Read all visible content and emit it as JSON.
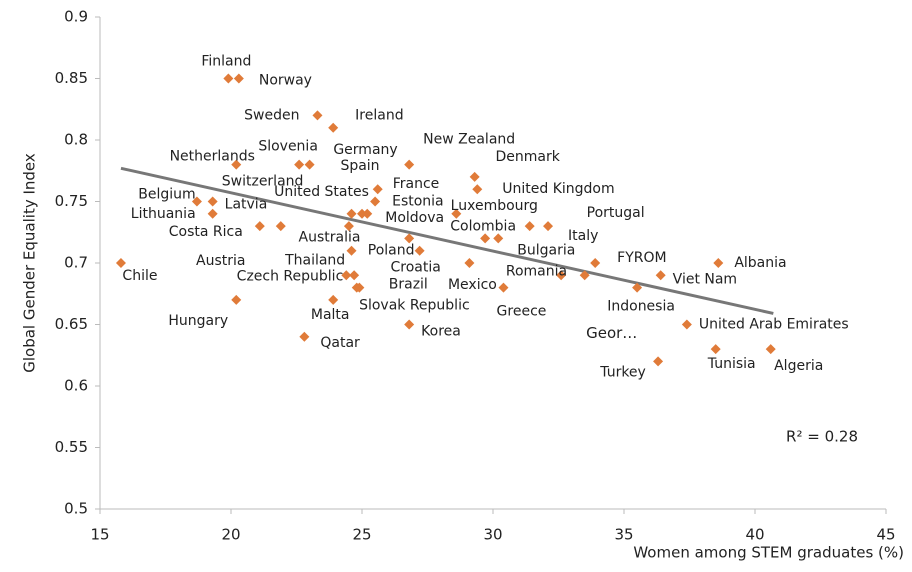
{
  "chart_data": {
    "type": "scatter",
    "xlabel": "Women among STEM graduates (%)",
    "ylabel": "Global Gender Equality Index",
    "annotation": "R² = 0.28",
    "color": "#e07b39",
    "trend_color": "#777777",
    "xlim": [
      15,
      45
    ],
    "xticks": [
      15,
      20,
      25,
      30,
      35,
      40,
      45
    ],
    "ylim": [
      0.5,
      0.9
    ],
    "yticks": [
      0.5,
      0.55,
      0.6,
      0.65,
      0.7,
      0.75,
      0.8,
      0.85,
      0.9
    ],
    "labels": [
      "Finland",
      "Norway",
      "Sweden",
      "Ireland",
      "Slovenia",
      "Switzerland",
      "Netherlands",
      "New Zealand",
      "Denmark",
      "Germany",
      "Spain",
      "France",
      "Estonia",
      "United States",
      "Moldova",
      "Australia",
      "Thailand",
      "Czech Republic",
      "Brazil",
      "Slovak Republic",
      "Malta",
      "Poland",
      "Croatia",
      "Korea",
      "Qatar",
      "Hungary",
      "Chile",
      "Belgium",
      "Latvia",
      "Lithuania",
      "Costa Rica",
      "Austria",
      "Luxembourg",
      "Colombia",
      "Bulgaria",
      "Portugal",
      "Italy",
      "United Kingdom",
      "Mexico",
      "Greece",
      "Romania",
      "FYROM",
      "Geor…",
      "Indonesia",
      "Viet Nam",
      "Albania",
      "United Arab Emirates",
      "Tunisia",
      "Algeria",
      "Turkey"
    ],
    "x": [
      19.9,
      20.3,
      23.3,
      23.9,
      22.6,
      23.0,
      20.2,
      26.8,
      29.3,
      24.6,
      25.0,
      25.6,
      25.5,
      24.5,
      25.2,
      24.6,
      24.7,
      24.4,
      24.8,
      24.9,
      23.9,
      26.8,
      27.2,
      26.8,
      22.8,
      20.2,
      15.8,
      18.7,
      19.3,
      19.3,
      21.1,
      21.9,
      28.6,
      29.7,
      30.2,
      31.4,
      32.1,
      29.4,
      29.1,
      30.4,
      32.6,
      33.9,
      33.5,
      35.5,
      36.4,
      38.6,
      37.4,
      38.5,
      40.6,
      36.3
    ],
    "y": [
      0.85,
      0.85,
      0.82,
      0.81,
      0.78,
      0.78,
      0.78,
      0.78,
      0.77,
      0.74,
      0.74,
      0.76,
      0.75,
      0.73,
      0.74,
      0.71,
      0.69,
      0.69,
      0.68,
      0.68,
      0.67,
      0.72,
      0.71,
      0.65,
      0.64,
      0.67,
      0.7,
      0.75,
      0.75,
      0.74,
      0.73,
      0.73,
      0.74,
      0.72,
      0.72,
      0.73,
      0.73,
      0.76,
      0.7,
      0.68,
      0.69,
      0.7,
      0.69,
      0.68,
      0.69,
      0.7,
      0.65,
      0.63,
      0.63,
      0.62
    ],
    "trendline": {
      "x": [
        15.8,
        40.7
      ],
      "y": [
        0.777,
        0.659
      ]
    }
  }
}
